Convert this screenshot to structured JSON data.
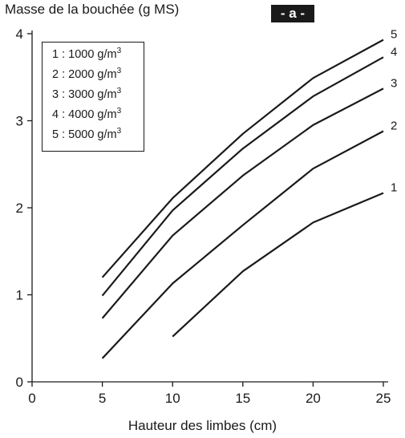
{
  "chart_data": {
    "type": "line",
    "ylabel": "Masse de la bouchée (g MS)",
    "xlabel": "Hauteur des limbes (cm)",
    "panel_tag": "- a -",
    "xlim": [
      0,
      25
    ],
    "ylim": [
      0,
      4
    ],
    "xticks": [
      0,
      5,
      10,
      15,
      20,
      25
    ],
    "yticks": [
      0,
      1,
      2,
      3,
      4
    ],
    "grid": false,
    "legend_position": "top-left",
    "legend": [
      {
        "key": "1",
        "text": "1 : 1000 g/m",
        "sup": "3"
      },
      {
        "key": "2",
        "text": "2 : 2000 g/m",
        "sup": "3"
      },
      {
        "key": "3",
        "text": "3 : 3000 g/m",
        "sup": "3"
      },
      {
        "key": "4",
        "text": "4 : 4000 g/m",
        "sup": "3"
      },
      {
        "key": "5",
        "text": "5 : 5000 g/m",
        "sup": "3"
      }
    ],
    "series": [
      {
        "name": "1",
        "x": [
          10,
          15,
          20,
          25
        ],
        "y": [
          0.52,
          1.27,
          1.83,
          2.17
        ]
      },
      {
        "name": "2",
        "x": [
          5,
          10,
          15,
          20,
          25
        ],
        "y": [
          0.27,
          1.13,
          1.8,
          2.45,
          2.88
        ]
      },
      {
        "name": "3",
        "x": [
          5,
          10,
          15,
          20,
          25
        ],
        "y": [
          0.73,
          1.68,
          2.37,
          2.95,
          3.37
        ]
      },
      {
        "name": "4",
        "x": [
          5,
          10,
          15,
          20,
          25
        ],
        "y": [
          0.99,
          1.97,
          2.68,
          3.28,
          3.73
        ]
      },
      {
        "name": "5",
        "x": [
          5,
          10,
          15,
          20,
          25
        ],
        "y": [
          1.2,
          2.11,
          2.85,
          3.49,
          3.93
        ]
      }
    ]
  }
}
